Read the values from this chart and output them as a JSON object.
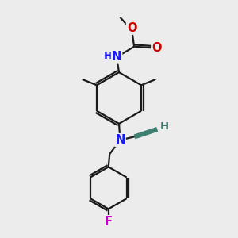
{
  "bg_color": "#ececec",
  "bond_color": "#1a1a1a",
  "bond_color_teal": "#3a7d6e",
  "bond_width": 1.6,
  "atom_colors": {
    "N": "#1a1aff",
    "O": "#cc0000",
    "F": "#cc00cc",
    "H": "#3a7d6e",
    "C": "#3a7d6e"
  },
  "font_size_atom": 10.5,
  "font_size_h": 9.5
}
